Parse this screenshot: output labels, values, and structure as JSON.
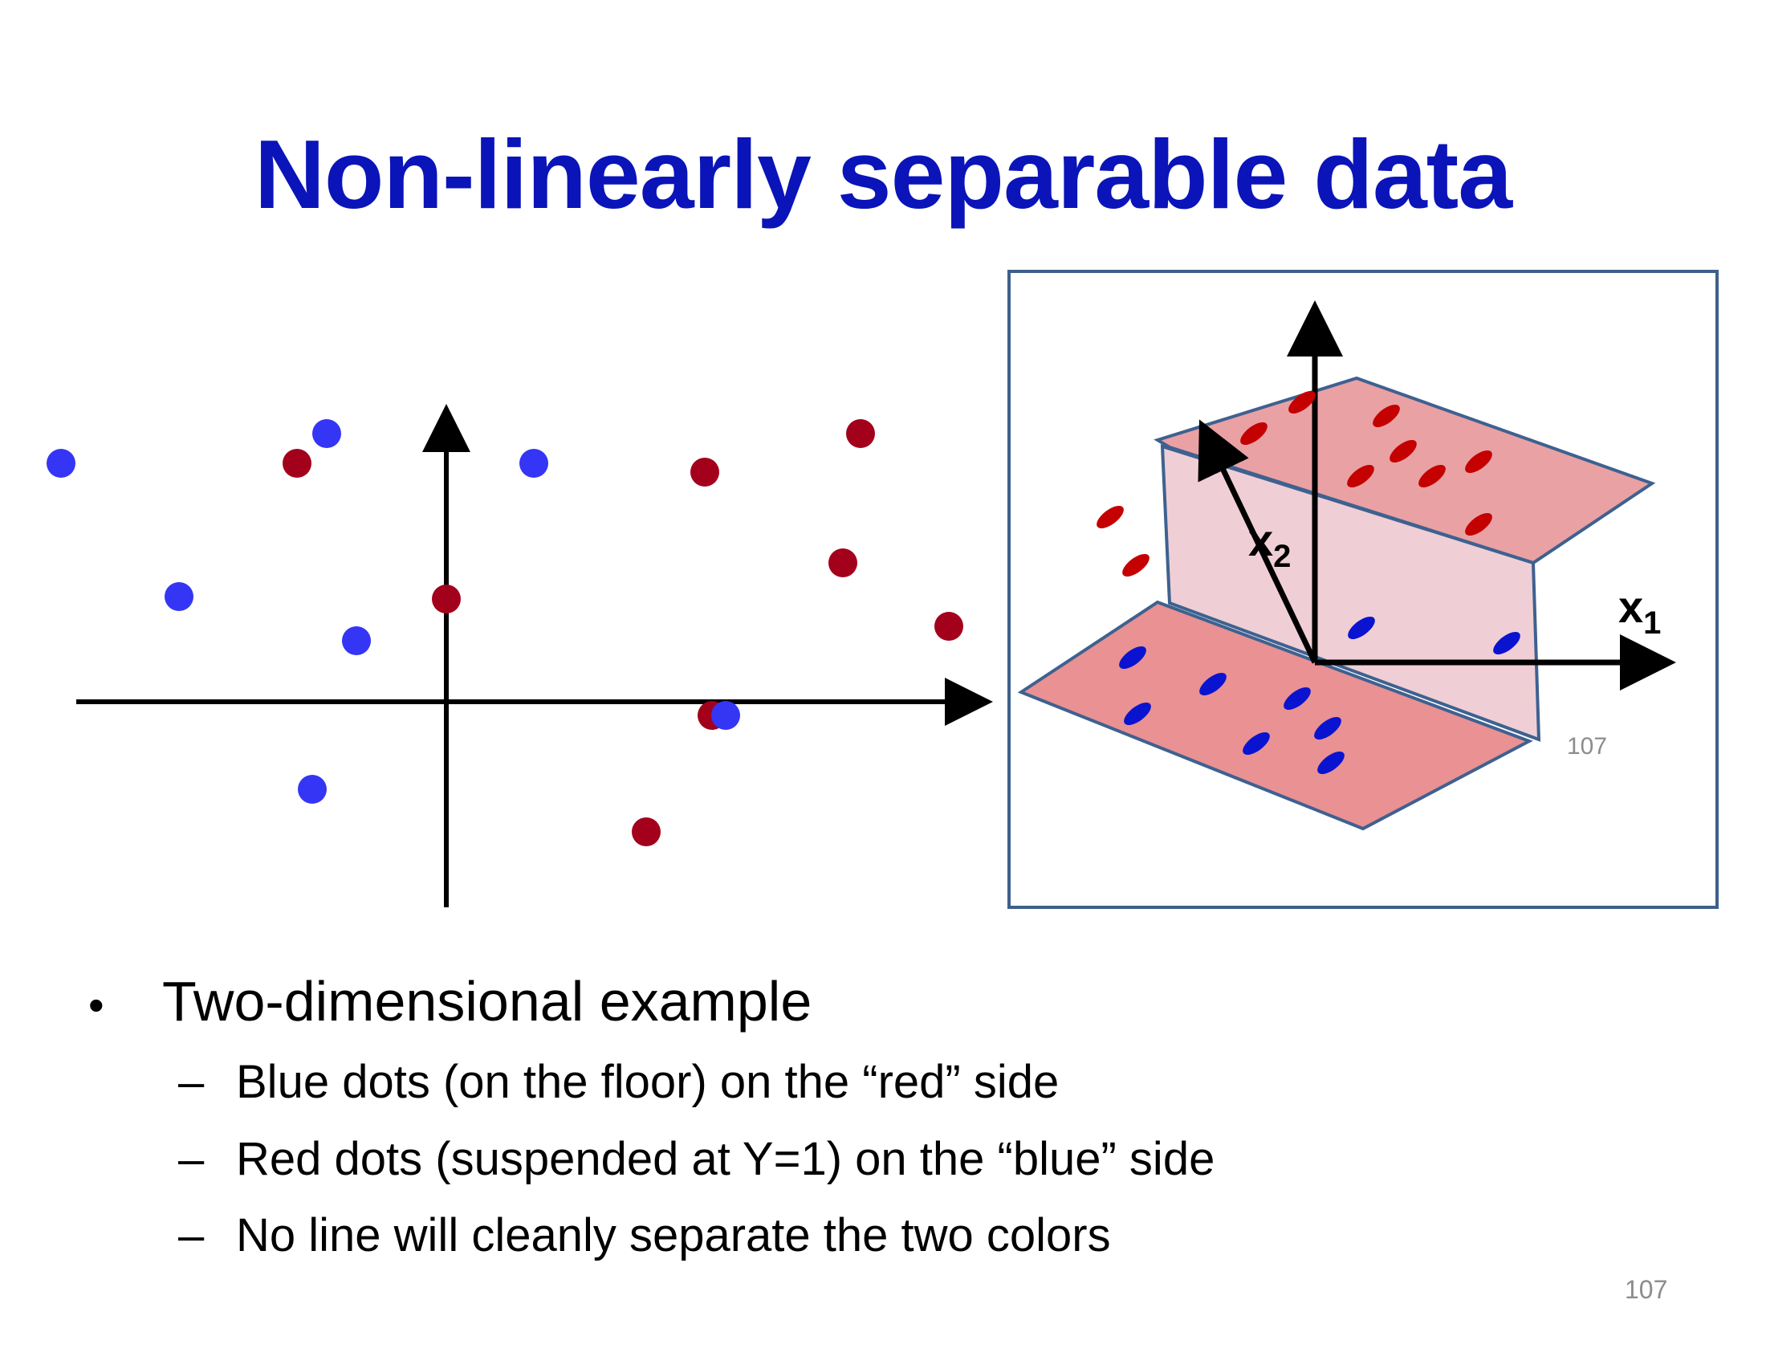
{
  "slide": {
    "title": "Non-linearly separable data",
    "page_number": "107",
    "inset_page_number": "107"
  },
  "bullets": {
    "main": "Two-dimensional example",
    "sub": [
      "Blue dots (on the floor) on the “red” side",
      "Red dots (suspended at Y=1) on the “blue” side",
      "No line will cleanly separate the two colors"
    ]
  },
  "diagram_3d": {
    "axis_x1_label": "x",
    "axis_x1_sub": "1",
    "axis_x2_label": "x",
    "axis_x2_sub": "2"
  },
  "colors": {
    "title": "#0a14b9",
    "blue_dot": "#3535f5",
    "red_dot": "#a3001c",
    "blue_ellipse": "#0a14d0",
    "red_ellipse": "#c40000",
    "plane_fill": "#e99494",
    "wall_fill": "#f0cfd4",
    "plane_edge": "#3e6190",
    "frame": "#3e5f8a"
  }
}
